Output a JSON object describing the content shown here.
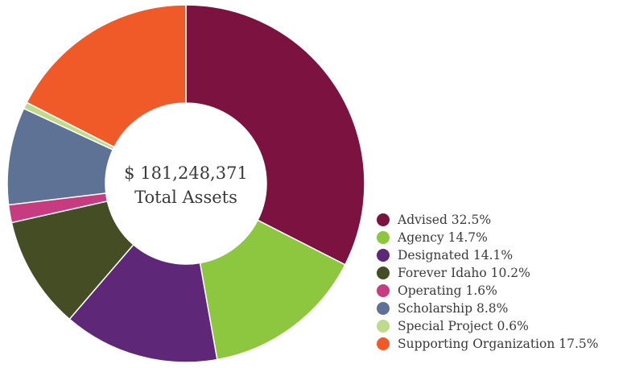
{
  "chart_data": {
    "type": "pie",
    "center_value": "$ 181,248,371",
    "center_label": "Total Assets",
    "legend_placement": "bottom-right",
    "slices": [
      {
        "name": "Advised",
        "percent": 32.5,
        "label": "Advised 32.5%",
        "color": "#7b1240"
      },
      {
        "name": "Agency",
        "percent": 14.7,
        "label": "Agency 14.7%",
        "color": "#8dc63f"
      },
      {
        "name": "Designated",
        "percent": 14.1,
        "label": "Designated 14.1%",
        "color": "#5f2777"
      },
      {
        "name": "Forever Idaho",
        "percent": 10.2,
        "label": "Forever Idaho 10.2%",
        "color": "#454d25"
      },
      {
        "name": "Operating",
        "percent": 1.6,
        "label": "Operating 1.6%",
        "color": "#c73b81"
      },
      {
        "name": "Scholarship",
        "percent": 8.8,
        "label": "Scholarship 8.8%",
        "color": "#5e7296"
      },
      {
        "name": "Special Project",
        "percent": 0.6,
        "label": "Special Project 0.6%",
        "color": "#bcdc8c"
      },
      {
        "name": "Supporting Organization",
        "percent": 17.5,
        "label": "Supporting Organization 17.5%",
        "color": "#f05a28"
      }
    ]
  }
}
